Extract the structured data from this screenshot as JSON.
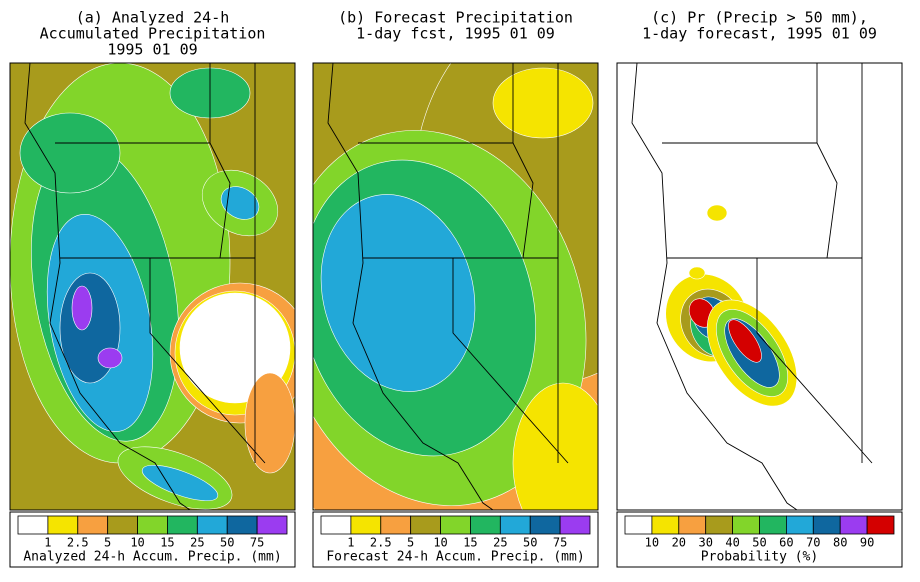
{
  "panels": [
    {
      "title": [
        "(a) Analyzed 24-h",
        "Accumulated Precipitation",
        "1995 01 09"
      ],
      "legend": {
        "colors": [
          "#ffffff",
          "#f5e400",
          "#f7a040",
          "#a89b1c",
          "#82d52a",
          "#22b660",
          "#22a8d8",
          "#0f679f",
          "#9b3cf0"
        ],
        "ticks": [
          1,
          2.5,
          5,
          10,
          15,
          25,
          50,
          75
        ],
        "label": "Analyzed 24-h Accum. Precip. (mm)"
      }
    },
    {
      "title": [
        "(b) Forecast Precipitation",
        "1-day fcst, 1995 01 09"
      ],
      "legend": {
        "colors": [
          "#ffffff",
          "#f5e400",
          "#f7a040",
          "#a89b1c",
          "#82d52a",
          "#22b660",
          "#22a8d8",
          "#0f679f",
          "#9b3cf0"
        ],
        "ticks": [
          1,
          2.5,
          5,
          10,
          15,
          25,
          50,
          75
        ],
        "label": "Forecast 24-h Accum. Precip. (mm)"
      }
    },
    {
      "title": [
        "(c) Pr (Precip > 50 mm),",
        "1-day forecast, 1995 01 09"
      ],
      "legend": {
        "colors": [
          "#ffffff",
          "#f5e400",
          "#f7a040",
          "#a89b1c",
          "#82d52a",
          "#22b660",
          "#22a8d8",
          "#0f679f",
          "#9b3cf0",
          "#d40000"
        ],
        "ticks": [
          10,
          20,
          30,
          40,
          50,
          60,
          70,
          80,
          90
        ],
        "label": "Probability (%)"
      }
    }
  ]
}
